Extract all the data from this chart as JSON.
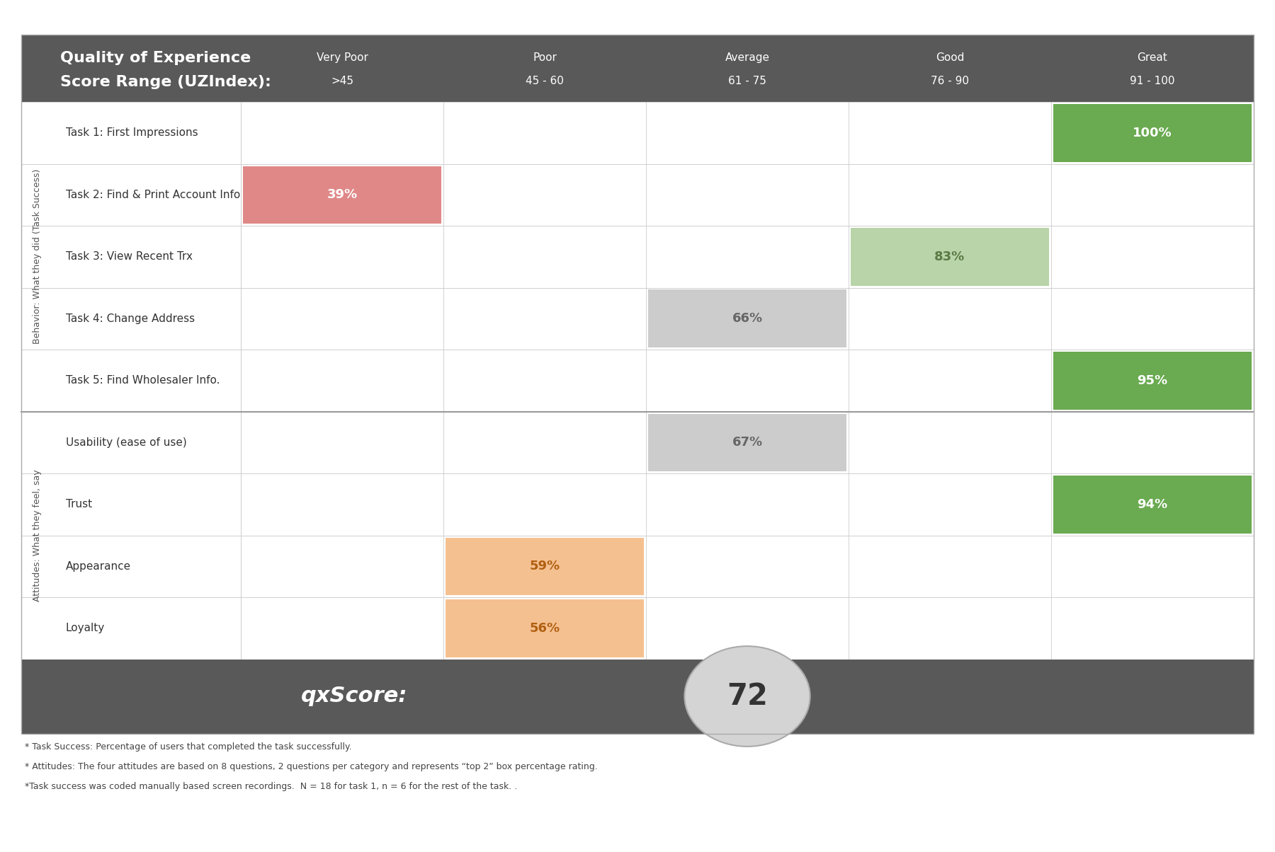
{
  "header_bg": "#595959",
  "header_text_color": "#ffffff",
  "title_line1": "Quality of Experience",
  "title_line2": "Score Range (UZIndex):",
  "col_label_texts": [
    [
      "Very Poor",
      ">45"
    ],
    [
      "Poor",
      "45 - 60"
    ],
    [
      "Average",
      "61 - 75"
    ],
    [
      "Good",
      "76 - 90"
    ],
    [
      "Great",
      "91 - 100"
    ]
  ],
  "section1_label": "Behavior: What they did (Task Success)",
  "section2_label": "Attitudes: What they feel, say",
  "rows": [
    {
      "label": "Task 1: First Impressions",
      "value": 100,
      "section": 1,
      "cell_color": "#6aaa50",
      "text_color": "#ffffff"
    },
    {
      "label": "Task 2: Find & Print Account Info",
      "value": 39,
      "section": 1,
      "cell_color": "#e08888",
      "text_color": "#ffffff"
    },
    {
      "label": "Task 3: View Recent Trx",
      "value": 83,
      "section": 1,
      "cell_color": "#b8d4a8",
      "text_color": "#5a7a45"
    },
    {
      "label": "Task 4: Change Address",
      "value": 66,
      "section": 1,
      "cell_color": "#cccccc",
      "text_color": "#666666"
    },
    {
      "label": "Task 5: Find Wholesaler Info.",
      "value": 95,
      "section": 1,
      "cell_color": "#6aaa50",
      "text_color": "#ffffff"
    },
    {
      "label": "Usability (ease of use)",
      "value": 67,
      "section": 2,
      "cell_color": "#cccccc",
      "text_color": "#666666"
    },
    {
      "label": "Trust",
      "value": 94,
      "section": 2,
      "cell_color": "#6aaa50",
      "text_color": "#ffffff"
    },
    {
      "label": "Appearance",
      "value": 59,
      "section": 2,
      "cell_color": "#f5c090",
      "text_color": "#b06010"
    },
    {
      "label": "Loyalty",
      "value": 56,
      "section": 2,
      "cell_color": "#f5c090",
      "text_color": "#b06010"
    }
  ],
  "qxscore": "72",
  "qxscore_label": "qxScore:",
  "footer_lines": [
    "* Task Success: Percentage of users that completed the task successfully.",
    "* Attitudes: The four attitudes are based on 8 questions, 2 questions per category and represents “top 2” box percentage rating.",
    "*Task success was coded manually based screen recordings.  N = 18 for task 1, n = 6 for the rest of the task. ."
  ],
  "bg_color": "#ffffff",
  "grid_color": "#cccccc",
  "section_divider_color": "#999999",
  "row_label_color": "#333333",
  "footer_text_color": "#444444"
}
